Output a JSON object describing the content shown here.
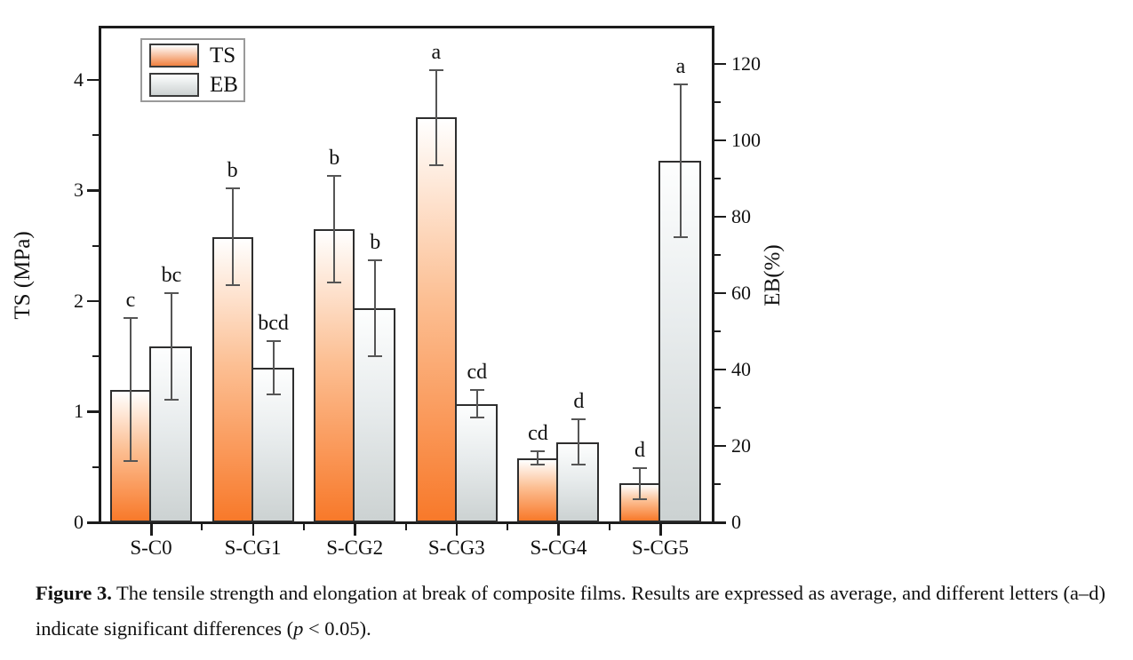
{
  "chart_data": {
    "type": "bar",
    "title": "",
    "categories": [
      "S-C0",
      "S-CG1",
      "S-CG2",
      "S-CG3",
      "S-CG4",
      "S-CG5"
    ],
    "series": [
      {
        "name": "TS",
        "axis": "left",
        "values": [
          1.2,
          2.58,
          2.65,
          3.66,
          0.58,
          0.35
        ],
        "errors": [
          0.65,
          0.44,
          0.48,
          0.43,
          0.06,
          0.14
        ],
        "letters": [
          "c",
          "b",
          "b",
          "a",
          "cd",
          "d"
        ],
        "color_bottom": "#f8792a",
        "color_top": "#ffffff"
      },
      {
        "name": "EB",
        "axis": "right",
        "values": [
          46,
          40.5,
          56,
          31,
          21,
          94.5
        ],
        "errors": [
          14,
          7,
          12.5,
          3.6,
          6,
          20
        ],
        "letters": [
          "bc",
          "bcd",
          "b",
          "cd",
          "d",
          "a"
        ],
        "color_bottom": "#ccd2d2",
        "color_top": "#fdfefe"
      }
    ],
    "left_axis": {
      "label": "TS (MPa)",
      "ticks": [
        0,
        1,
        2,
        3,
        4
      ],
      "minor_ticks": [
        0.5,
        1.5,
        2.5,
        3.5
      ],
      "range": [
        0,
        4.48
      ]
    },
    "right_axis": {
      "label": "EB(%)",
      "ticks": [
        0,
        20,
        40,
        60,
        80,
        100,
        120
      ],
      "minor_ticks": [
        10,
        30,
        50,
        70,
        90,
        110
      ],
      "range": [
        0,
        129.7
      ]
    },
    "legend": {
      "position": "top-left",
      "items": [
        {
          "label": "TS",
          "swatch": "orange-gradient"
        },
        {
          "label": "EB",
          "swatch": "grey-gradient"
        }
      ]
    },
    "grid": false,
    "error_bars": true
  },
  "caption": {
    "label": "Figure 3.",
    "text_before_p": " The tensile strength and elongation at break of composite films. Results are expressed as average, and different letters (a–d) indicate significant differences (",
    "p_symbol": "p",
    "text_after_p": " < 0.05)."
  },
  "colors": {
    "ts_orange": "#f8792a",
    "eb_grey": "#ccd2d2",
    "bar_border": "#2e2e2e",
    "axis": "#1c1c1c",
    "error_bar": "#555555"
  }
}
